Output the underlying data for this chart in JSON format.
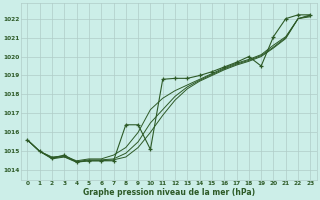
{
  "title": "Graphe pression niveau de la mer (hPa)",
  "bg_color": "#cceee8",
  "grid_color": "#b0ccc8",
  "line_color": "#2d5a27",
  "xlim": [
    -0.5,
    23.5
  ],
  "ylim": [
    1013.5,
    1022.8
  ],
  "yticks": [
    1014,
    1015,
    1016,
    1017,
    1018,
    1019,
    1020,
    1021,
    1022
  ],
  "xticks": [
    0,
    1,
    2,
    3,
    4,
    5,
    6,
    7,
    8,
    9,
    10,
    11,
    12,
    13,
    14,
    15,
    16,
    17,
    18,
    19,
    20,
    21,
    22,
    23
  ],
  "smooth1_y": [
    1015.6,
    1015.0,
    1014.7,
    1014.75,
    1014.5,
    1014.6,
    1014.6,
    1014.8,
    1015.2,
    1016.0,
    1017.2,
    1017.8,
    1018.2,
    1018.5,
    1018.8,
    1019.1,
    1019.4,
    1019.65,
    1019.85,
    1020.1,
    1020.6,
    1021.05,
    1022.0,
    1022.2
  ],
  "smooth2_y": [
    1015.6,
    1015.0,
    1014.65,
    1014.72,
    1014.45,
    1014.55,
    1014.55,
    1014.6,
    1014.9,
    1015.5,
    1016.5,
    1017.2,
    1017.9,
    1018.4,
    1018.75,
    1019.05,
    1019.35,
    1019.6,
    1019.8,
    1020.05,
    1020.5,
    1021.0,
    1022.0,
    1022.15
  ],
  "smooth3_y": [
    1015.6,
    1015.0,
    1014.6,
    1014.7,
    1014.42,
    1014.5,
    1014.5,
    1014.55,
    1014.7,
    1015.2,
    1016.0,
    1016.9,
    1017.7,
    1018.3,
    1018.7,
    1019.0,
    1019.3,
    1019.55,
    1019.75,
    1020.0,
    1020.45,
    1020.95,
    1022.0,
    1022.1
  ],
  "marker_y": [
    1015.6,
    1015.0,
    1014.65,
    1014.8,
    1014.45,
    1014.5,
    1014.5,
    1014.5,
    1016.4,
    1016.4,
    1015.1,
    1018.8,
    1018.85,
    1018.85,
    1019.0,
    1019.2,
    1019.45,
    1019.7,
    1020.0,
    1019.5,
    1021.05,
    1022.0,
    1022.2,
    1022.2
  ]
}
